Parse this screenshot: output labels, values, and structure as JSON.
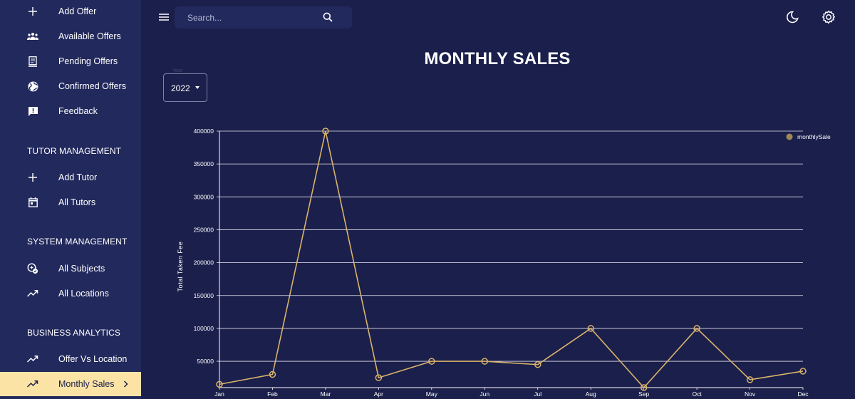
{
  "sidebar": {
    "items": [
      {
        "label": "Add Offer",
        "icon": "plus-icon"
      },
      {
        "label": "Available Offers",
        "icon": "people-icon"
      },
      {
        "label": "Pending Offers",
        "icon": "receipt-icon"
      },
      {
        "label": "Confirmed Offers",
        "icon": "globe-icon"
      },
      {
        "label": "Feedback",
        "icon": "feedback-icon"
      }
    ],
    "sections": [
      {
        "title": "TUTOR MANAGEMENT",
        "items": [
          {
            "label": "Add Tutor",
            "icon": "plus-icon"
          },
          {
            "label": "All Tutors",
            "icon": "calendar-icon"
          }
        ]
      },
      {
        "title": "SYSTEM MANAGEMENT",
        "items": [
          {
            "label": "All Subjects",
            "icon": "subject-icon"
          },
          {
            "label": "All Locations",
            "icon": "trending-icon"
          }
        ]
      },
      {
        "title": "BUSINESS ANALYTICS",
        "items": [
          {
            "label": "Offer Vs Location",
            "icon": "trending-icon"
          },
          {
            "label": "Monthly Sales",
            "icon": "trending-icon",
            "active": true
          }
        ]
      }
    ]
  },
  "header": {
    "search_placeholder": "Search...",
    "menu_icon": "hamburger-icon",
    "search_icon": "search-icon",
    "theme_icon": "moon-icon",
    "settings_icon": "gear-icon"
  },
  "page": {
    "title": "MONTHLY SALES",
    "year_label": "Year",
    "year_value": "2022"
  },
  "colors": {
    "background": "#1b1f4b",
    "sidebar": "#22295c",
    "active_item": "#fbe3a6",
    "line": "#d9b36b",
    "legend_dot": "#9c8a56"
  },
  "chart_data": {
    "type": "line",
    "categories": [
      "Jan",
      "Feb",
      "Mar",
      "Apr",
      "May",
      "Jun",
      "Jul",
      "Aug",
      "Sep",
      "Oct",
      "Nov",
      "Dec"
    ],
    "series": [
      {
        "name": "monthlySale",
        "values": [
          15000,
          30000,
          400000,
          25000,
          50000,
          50000,
          45000,
          100000,
          10000,
          100000,
          22000,
          35000
        ]
      }
    ],
    "yticks": [
      "400000",
      "350000",
      "300000",
      "250000",
      "200000",
      "150000",
      "100000",
      "50000"
    ],
    "ylabel": "Total Taken Fee",
    "ylim": [
      10000,
      400000
    ],
    "grid": true,
    "legend": "top-right"
  }
}
